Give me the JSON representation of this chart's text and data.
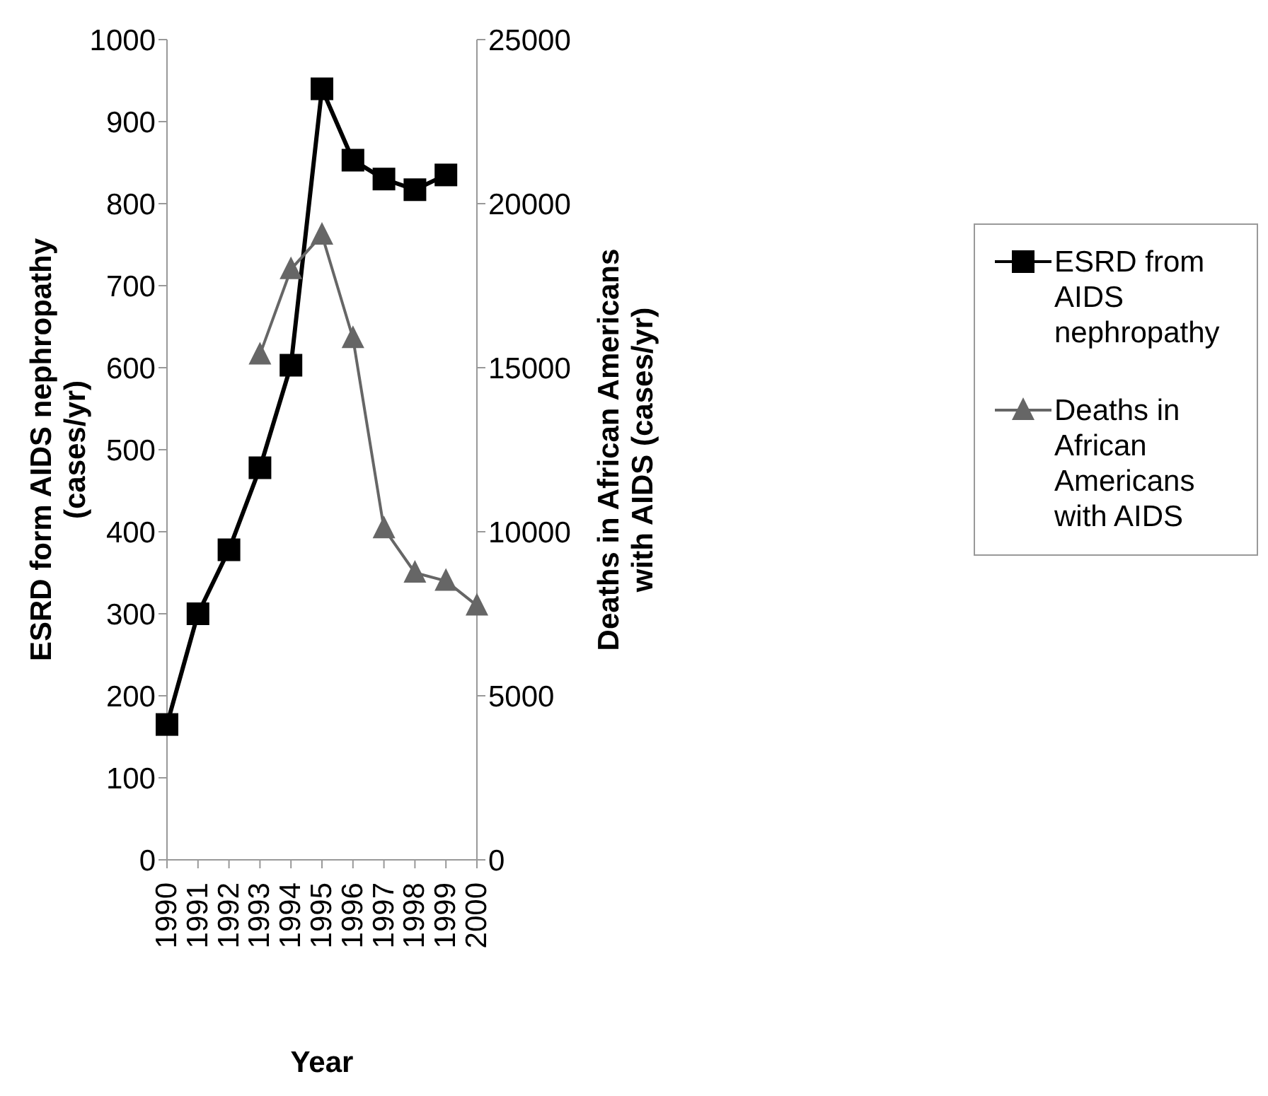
{
  "chart_data": {
    "type": "line",
    "xlabel": "Year",
    "ylabel": "ESRD form AIDS nephropathy (cases/yr)",
    "y2label": "Deaths in African Americans with AIDS (cases/yr)",
    "categories": [
      "1990",
      "1991",
      "1992",
      "1993",
      "1994",
      "1995",
      "1996",
      "1997",
      "1998",
      "1999",
      "2000"
    ],
    "series": [
      {
        "name": "ESRD from AIDS nephropathy",
        "color": "#000000",
        "marker": "square",
        "values": [
          165,
          300,
          378,
          478,
          603,
          940,
          853,
          830,
          817,
          835,
          null
        ]
      },
      {
        "name": "Deaths in African Americans with AIDS",
        "color": "#666666",
        "marker": "triangle",
        "axis": "y2",
        "values": [
          null,
          null,
          null,
          15400,
          18000,
          19050,
          15900,
          10100,
          8750,
          8500,
          7750
        ]
      }
    ],
    "ylim": [
      0,
      1000
    ],
    "yticks": [
      0,
      100,
      200,
      300,
      400,
      500,
      600,
      700,
      800,
      900,
      1000
    ],
    "y2lim": [
      0,
      25000
    ],
    "y2ticks": [
      0,
      5000,
      10000,
      15000,
      20000,
      25000
    ],
    "grid": false,
    "legend": "right"
  }
}
